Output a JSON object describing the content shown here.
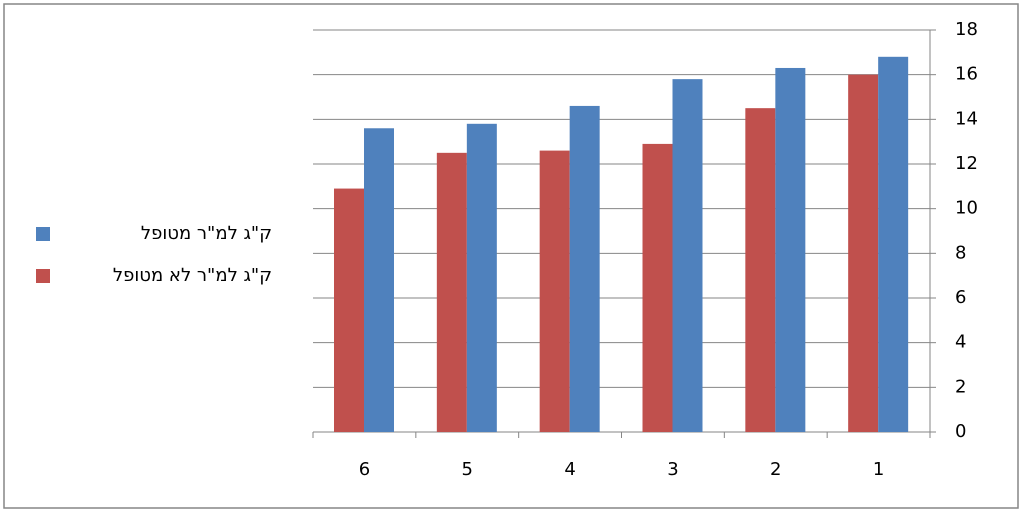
{
  "chart_data": {
    "type": "bar",
    "categories": [
      "6",
      "5",
      "4",
      "3",
      "2",
      "1"
    ],
    "series": [
      {
        "name": "ק\"ג למ\"ר מטופל",
        "color": "#4f81bd",
        "values": [
          13.6,
          13.8,
          14.6,
          15.8,
          16.3,
          16.8
        ]
      },
      {
        "name": "ק\"ג למ\"ר לא מטופל",
        "color": "#c0504d",
        "values": [
          10.9,
          12.5,
          12.6,
          12.9,
          14.5,
          16.0
        ]
      }
    ],
    "ylim": [
      0,
      18
    ],
    "yticks": [
      0,
      2,
      4,
      6,
      8,
      10,
      12,
      14,
      16,
      18
    ],
    "grid": true,
    "legend": "left"
  }
}
